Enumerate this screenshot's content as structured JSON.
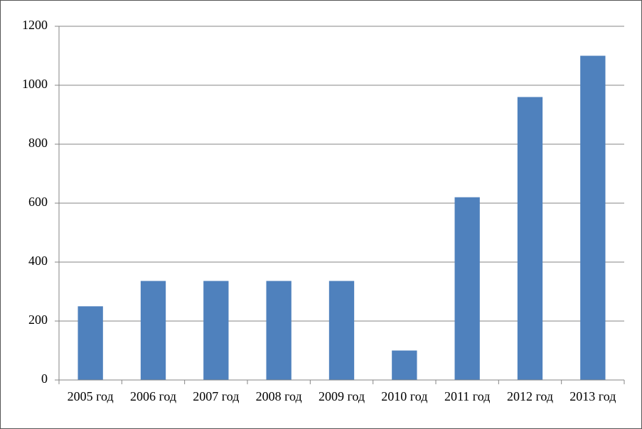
{
  "chart_data": {
    "type": "bar",
    "categories": [
      "2005 год",
      "2006 год",
      "2007 год",
      "2008 год",
      "2009 год",
      "2010 год",
      "2011 год",
      "2012 год",
      "2013 год"
    ],
    "values": [
      250,
      336,
      336,
      336,
      336,
      100,
      620,
      960,
      1100
    ],
    "color": "#4f81bd",
    "ylim": [
      0,
      1200
    ],
    "yticks": [
      0,
      200,
      400,
      600,
      800,
      1000,
      1200
    ],
    "grid": true
  }
}
